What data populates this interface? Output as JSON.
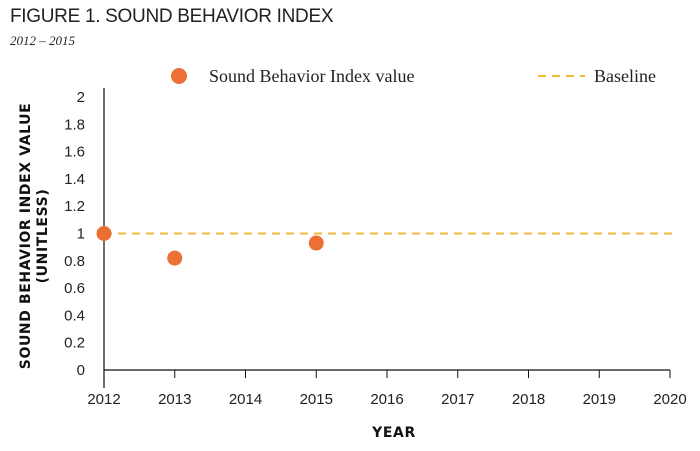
{
  "title": "FIGURE 1. SOUND BEHAVIOR INDEX",
  "subtitle": "2012 – 2015",
  "colors": {
    "series": "#ec7033",
    "baseline": "#f2b93b",
    "axis": "#111111"
  },
  "chart_data": {
    "type": "scatter",
    "xlabel": "YEAR",
    "ylabel_line1": "SOUND BEHAVIOR INDEX VALUE",
    "ylabel_line2": "(UNITLESS)",
    "xlim": [
      2012,
      2020
    ],
    "ylim": [
      0,
      2
    ],
    "x_ticks": [
      "2012",
      "2013",
      "2014",
      "2015",
      "2016",
      "2017",
      "2018",
      "2019",
      "2020"
    ],
    "y_ticks": [
      "0",
      "0.2",
      "0.4",
      "0.6",
      "0.8",
      "1",
      "1.2",
      "1.4",
      "1.6",
      "1.8",
      "2"
    ],
    "series": [
      {
        "name": "Sound Behavior Index value",
        "x": [
          2012,
          2013,
          2015
        ],
        "y": [
          1.0,
          0.82,
          0.93
        ]
      }
    ],
    "baseline": {
      "name": "Baseline",
      "value": 1.0
    },
    "grid": false,
    "legend_position": "top"
  }
}
